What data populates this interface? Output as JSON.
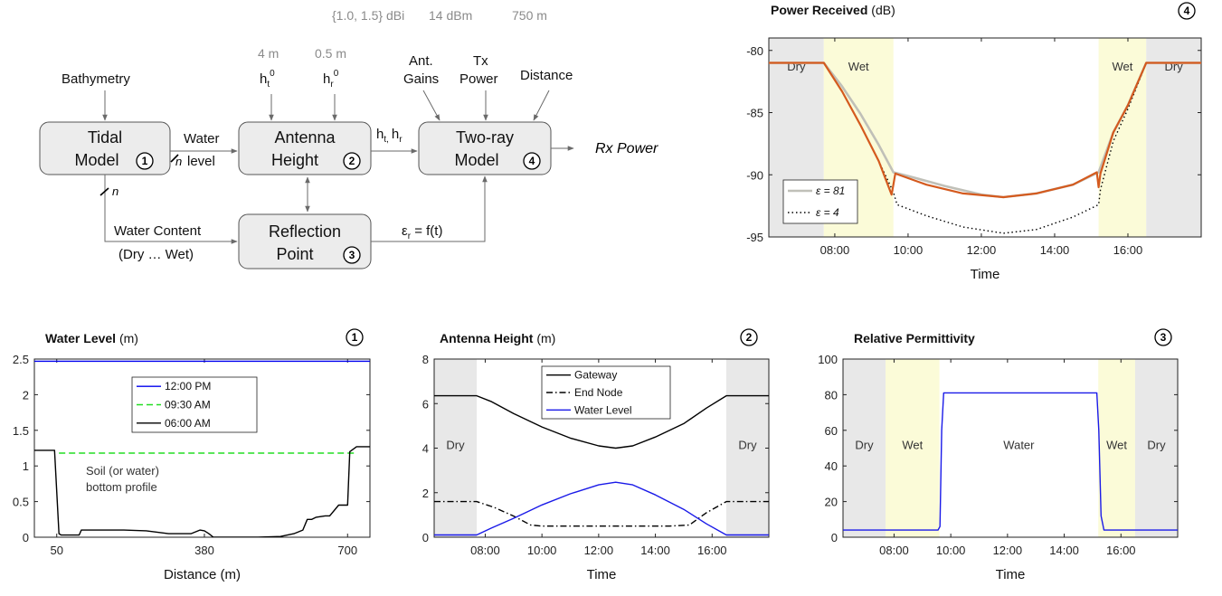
{
  "diagram": {
    "top_params": {
      "gain": "{1.0, 1.5} dBi",
      "power": "14 dBm",
      "distance": "750 m"
    },
    "height_params": {
      "ht0": "4 m",
      "hr0": "0.5 m"
    },
    "inputs": {
      "bathymetry": "Bathymetry",
      "ht_base": "h",
      "ht_sub": "t",
      "ht_sup": "0",
      "hr_base": "h",
      "hr_sub": "r",
      "hr_sup": "0",
      "ant_gains_1": "Ant.",
      "ant_gains_2": "Gains",
      "tx_power_1": "Tx",
      "tx_power_2": "Power",
      "distance": "Distance"
    },
    "blocks": {
      "tidal": {
        "line1": "Tidal",
        "line2": "Model",
        "num": "1"
      },
      "antenna": {
        "line1": "Antenna",
        "line2": "Height",
        "num": "2"
      },
      "tworay": {
        "line1": "Two-ray",
        "line2": "Model",
        "num": "4"
      },
      "reflection": {
        "line1": "Reflection",
        "line2": "Point",
        "num": "3"
      }
    },
    "edges": {
      "water_level_1": "Water",
      "water_level_2": "level",
      "n": "n",
      "hthr_h1": "h",
      "hthr_t": "t,",
      "hthr_h2": "h",
      "hthr_r": "r",
      "water_content_1": "Water Content",
      "water_content_2": "(Dry … Wet)",
      "eps_e": "ε",
      "eps_r": "r",
      "eps_rest": " = f(t)"
    },
    "output": "Rx Power"
  },
  "chart_data": [
    {
      "id": "power",
      "type": "line",
      "title_bold": "Power Received",
      "title_unit": "(dB)",
      "num": "4",
      "xlabel": "Time",
      "ylabel": "",
      "xlim": [
        6.2,
        18.0
      ],
      "ylim": [
        -95,
        -79
      ],
      "xticks": [
        8,
        10,
        12,
        14,
        16
      ],
      "xtick_labels": [
        "08:00",
        "10:00",
        "12:00",
        "14:00",
        "16:00"
      ],
      "yticks": [
        -80,
        -85,
        -90,
        -95
      ],
      "ytick_labels": [
        "-80",
        "-85",
        "-90",
        "-95"
      ],
      "regions": [
        {
          "kind": "dry",
          "from": 6.2,
          "to": 7.7,
          "label": "Dry"
        },
        {
          "kind": "wet",
          "from": 7.7,
          "to": 9.6,
          "label": "Wet"
        },
        {
          "kind": "wet",
          "from": 15.2,
          "to": 16.5,
          "label": "Wet"
        },
        {
          "kind": "dry",
          "from": 16.5,
          "to": 18.0,
          "label": "Dry"
        }
      ],
      "legend": {
        "position": "bottom-left",
        "entries": [
          "ε = 81",
          "ε = 4"
        ]
      },
      "series": [
        {
          "name": "ε = 81",
          "color": "#c0c0b8",
          "dash": "",
          "x": [
            6.2,
            7.7,
            8.2,
            8.7,
            9.2,
            9.6,
            10.0,
            11.0,
            12.0,
            12.6,
            13.5,
            14.5,
            15.2,
            15.6,
            16.0,
            16.5,
            18.0
          ],
          "y": [
            -81,
            -81,
            -82.9,
            -85.1,
            -87.6,
            -89.8,
            -90.1,
            -90.9,
            -91.6,
            -91.8,
            -91.5,
            -90.8,
            -89.8,
            -86.6,
            -84.4,
            -81,
            -81
          ]
        },
        {
          "name": "ε = 4",
          "color": "#000000",
          "dash": "1.5,3",
          "x": [
            6.2,
            7.7,
            8.2,
            8.7,
            9.2,
            9.6,
            9.7,
            10.5,
            11.5,
            12.6,
            13.5,
            14.5,
            15.2,
            15.25,
            15.6,
            16.0,
            16.5,
            18.0
          ],
          "y": [
            -81,
            -81,
            -83.3,
            -86.0,
            -88.9,
            -91.4,
            -92.4,
            -93.3,
            -94.2,
            -94.7,
            -94.4,
            -93.4,
            -92.4,
            -91.2,
            -87.3,
            -84.7,
            -81,
            -81
          ]
        },
        {
          "name": "",
          "color": "#d45a1e",
          "dash": "",
          "x": [
            6.2,
            7.7,
            8.2,
            8.7,
            9.2,
            9.55,
            9.6,
            9.65,
            10.5,
            11.5,
            12.6,
            13.5,
            14.5,
            15.15,
            15.2,
            15.25,
            15.6,
            16.0,
            16.5,
            18.0
          ],
          "y": [
            -81,
            -81,
            -83.3,
            -86.0,
            -88.9,
            -91.6,
            -90.8,
            -89.9,
            -90.8,
            -91.5,
            -91.8,
            -91.5,
            -90.8,
            -89.8,
            -91.0,
            -89.9,
            -86.6,
            -84.4,
            -81,
            -81
          ]
        }
      ]
    },
    {
      "id": "water",
      "type": "line",
      "title_bold": "Water Level",
      "title_unit": "(m)",
      "num": "1",
      "xlabel": "Distance (m)",
      "ylabel": "",
      "xlim": [
        0,
        750
      ],
      "ylim": [
        0,
        2.5
      ],
      "xticks": [
        50,
        380,
        700
      ],
      "xtick_labels": [
        "50",
        "380",
        "700"
      ],
      "yticks": [
        0,
        0.5,
        1,
        1.5,
        2,
        2.5
      ],
      "ytick_labels": [
        "0",
        "0.5",
        "1",
        "1.5",
        "2",
        "2.5"
      ],
      "annotation_1": "Soil (or water)",
      "annotation_2": "bottom  profile",
      "legend": {
        "position": "top-center",
        "entries": [
          "12:00 PM",
          "09:30 AM",
          "06:00 AM"
        ]
      },
      "series": [
        {
          "name": "12:00 PM",
          "color": "#0000ee",
          "dash": "",
          "x": [
            0,
            750
          ],
          "y": [
            2.47,
            2.47
          ]
        },
        {
          "name": "09:30 AM",
          "color": "#22dd22",
          "dash": "7,4",
          "x": [
            55,
            720
          ],
          "y": [
            1.18,
            1.18
          ]
        },
        {
          "name": "06:00 AM",
          "color": "#000000",
          "dash": "",
          "x": [
            0,
            45,
            55,
            60,
            100,
            105,
            115,
            160,
            200,
            250,
            300,
            320,
            350,
            370,
            380,
            390,
            400,
            450,
            500,
            550,
            580,
            600,
            610,
            620,
            630,
            650,
            660,
            680,
            700,
            705,
            720,
            750
          ],
          "y": [
            1.22,
            1.22,
            0.05,
            0.03,
            0.03,
            0.1,
            0.1,
            0.1,
            0.1,
            0.09,
            0.05,
            0.05,
            0.05,
            0.1,
            0.09,
            0.05,
            0.0,
            0.0,
            0.0,
            0.01,
            0.05,
            0.1,
            0.25,
            0.25,
            0.28,
            0.3,
            0.3,
            0.45,
            0.45,
            1.2,
            1.27,
            1.27
          ]
        }
      ]
    },
    {
      "id": "antenna",
      "type": "line",
      "title_bold": "Antenna  Height",
      "title_unit": "(m)",
      "num": "2",
      "xlabel": "Time",
      "ylabel": "",
      "xlim": [
        6.2,
        18.0
      ],
      "ylim": [
        0,
        8
      ],
      "xticks": [
        8,
        10,
        12,
        14,
        16
      ],
      "xtick_labels": [
        "08:00",
        "10:00",
        "12:00",
        "14:00",
        "16:00"
      ],
      "yticks": [
        0,
        2,
        4,
        6,
        8
      ],
      "ytick_labels": [
        "0",
        "2",
        "4",
        "6",
        "8"
      ],
      "regions": [
        {
          "kind": "dry",
          "from": 6.2,
          "to": 7.7,
          "label": "Dry"
        },
        {
          "kind": "dry",
          "from": 16.5,
          "to": 18.0,
          "label": "Dry"
        }
      ],
      "legend": {
        "position": "top-center",
        "entries": [
          "Gateway",
          "End Node",
          "Water Level"
        ]
      },
      "series": [
        {
          "name": "Gateway",
          "color": "#000000",
          "dash": "",
          "x": [
            6.2,
            7.7,
            8.2,
            9.0,
            10.0,
            11.0,
            12.0,
            12.6,
            13.2,
            14.0,
            15.0,
            15.8,
            16.5,
            18.0
          ],
          "y": [
            6.35,
            6.35,
            6.1,
            5.55,
            4.95,
            4.45,
            4.1,
            4.0,
            4.1,
            4.5,
            5.1,
            5.8,
            6.35,
            6.35
          ]
        },
        {
          "name": "End Node",
          "color": "#000000",
          "dash": "7,3,1.5,3",
          "x": [
            6.2,
            7.7,
            8.3,
            9.0,
            9.6,
            10.0,
            14.5,
            15.2,
            15.8,
            16.5,
            18.0
          ],
          "y": [
            1.6,
            1.6,
            1.35,
            0.95,
            0.55,
            0.5,
            0.5,
            0.55,
            1.1,
            1.6,
            1.6
          ]
        },
        {
          "name": "Water Level",
          "color": "#1a1ae8",
          "dash": "",
          "x": [
            6.2,
            7.7,
            8.2,
            9.0,
            10.0,
            11.0,
            12.0,
            12.6,
            13.2,
            14.0,
            15.0,
            15.8,
            16.5,
            18.0
          ],
          "y": [
            0.1,
            0.1,
            0.4,
            0.85,
            1.45,
            1.95,
            2.35,
            2.47,
            2.35,
            1.9,
            1.25,
            0.6,
            0.1,
            0.1
          ]
        }
      ]
    },
    {
      "id": "perm",
      "type": "line",
      "title_bold": "Relative Permittivity",
      "title_unit": "",
      "num": "3",
      "xlabel": "Time",
      "ylabel": "",
      "xlim": [
        6.2,
        18.0
      ],
      "ylim": [
        0,
        100
      ],
      "xticks": [
        8,
        10,
        12,
        14,
        16
      ],
      "xtick_labels": [
        "08:00",
        "10:00",
        "12:00",
        "14:00",
        "16:00"
      ],
      "yticks": [
        0,
        20,
        40,
        60,
        80,
        100
      ],
      "ytick_labels": [
        "0",
        "20",
        "40",
        "60",
        "80",
        "100"
      ],
      "regions": [
        {
          "kind": "dry",
          "from": 6.2,
          "to": 7.7,
          "label": "Dry"
        },
        {
          "kind": "wet",
          "from": 7.7,
          "to": 9.6,
          "label": "Wet"
        },
        {
          "kind": "none",
          "from": 9.6,
          "to": 15.2,
          "label": "Water"
        },
        {
          "kind": "wet",
          "from": 15.2,
          "to": 16.5,
          "label": "Wet"
        },
        {
          "kind": "dry",
          "from": 16.5,
          "to": 18.0,
          "label": "Dry"
        }
      ],
      "series": [
        {
          "name": "",
          "color": "#1a1ae8",
          "dash": "",
          "x": [
            6.2,
            9.55,
            9.62,
            9.68,
            9.75,
            15.15,
            15.22,
            15.3,
            15.4,
            18.0
          ],
          "y": [
            4,
            4,
            6,
            60,
            81,
            81,
            60,
            12,
            4,
            4
          ]
        }
      ]
    }
  ]
}
